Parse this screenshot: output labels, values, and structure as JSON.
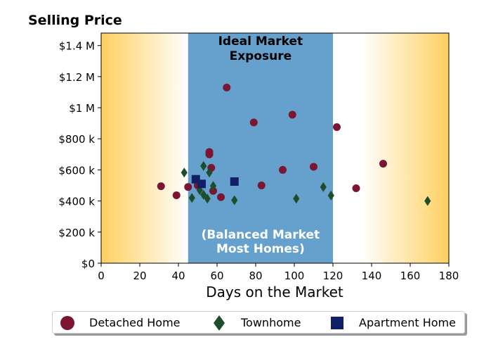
{
  "colors": {
    "detached": "#7a1532",
    "townhome": "#1e4d2b",
    "apartment": "#101f66",
    "ideal_band": "#66a0cc",
    "gradient_edge": "#ffd060",
    "gradient_mid": "#ffffff"
  },
  "chart_data": {
    "type": "scatter",
    "title": "Selling Price",
    "xlabel": "Days on the Market",
    "ylabel": "",
    "xlim": [
      0,
      180
    ],
    "ylim": [
      0,
      1480000
    ],
    "x_ticks": [
      0,
      20,
      40,
      60,
      80,
      100,
      120,
      140,
      160,
      180
    ],
    "x_tick_labels": [
      "0",
      "20",
      "40",
      "60",
      "80",
      "100",
      "120",
      "140",
      "160",
      "180"
    ],
    "y_ticks": [
      0,
      200000,
      400000,
      600000,
      800000,
      1000000,
      1200000,
      1400000
    ],
    "y_tick_labels": [
      "$0",
      "$200 k",
      "$400 k",
      "$600 k",
      "$800 k",
      "$1 M",
      "$1.2 M",
      "$1.4 M"
    ],
    "grid": false,
    "legend_position": "bottom",
    "annotations": [
      {
        "text_lines": [
          "Ideal Market",
          "Exposure"
        ],
        "position": "top-center-of-band",
        "color": "#000000"
      },
      {
        "text_lines": [
          "(Balanced Market",
          "Most Homes)"
        ],
        "position": "bottom-center-of-band",
        "color": "#ffffff"
      }
    ],
    "shaded_region": {
      "x_from": 45,
      "x_to": 120,
      "label": "Ideal Market Exposure"
    },
    "series": [
      {
        "name": "Detached Home",
        "marker": "circle",
        "points": [
          [
            31,
            495000
          ],
          [
            39,
            437000
          ],
          [
            45,
            490000
          ],
          [
            50,
            500000
          ],
          [
            56,
            700000
          ],
          [
            56,
            715000
          ],
          [
            57,
            613000
          ],
          [
            58,
            465000
          ],
          [
            62,
            425000
          ],
          [
            65,
            1130000
          ],
          [
            79,
            905000
          ],
          [
            83,
            500000
          ],
          [
            94,
            600000
          ],
          [
            99,
            955000
          ],
          [
            110,
            620000
          ],
          [
            122,
            875000
          ],
          [
            132,
            482000
          ],
          [
            146,
            640000
          ]
        ]
      },
      {
        "name": "Townhome",
        "marker": "diamond",
        "points": [
          [
            43,
            583000
          ],
          [
            47,
            420000
          ],
          [
            51,
            470000
          ],
          [
            53,
            625000
          ],
          [
            53,
            440000
          ],
          [
            55,
            415000
          ],
          [
            56,
            583000
          ],
          [
            58,
            497000
          ],
          [
            69,
            405000
          ],
          [
            101,
            415000
          ],
          [
            115,
            490000
          ],
          [
            119,
            435000
          ],
          [
            169,
            400000
          ]
        ]
      },
      {
        "name": "Apartment Home",
        "marker": "square",
        "points": [
          [
            49,
            540000
          ],
          [
            52,
            510000
          ],
          [
            69,
            525000
          ]
        ]
      }
    ]
  }
}
